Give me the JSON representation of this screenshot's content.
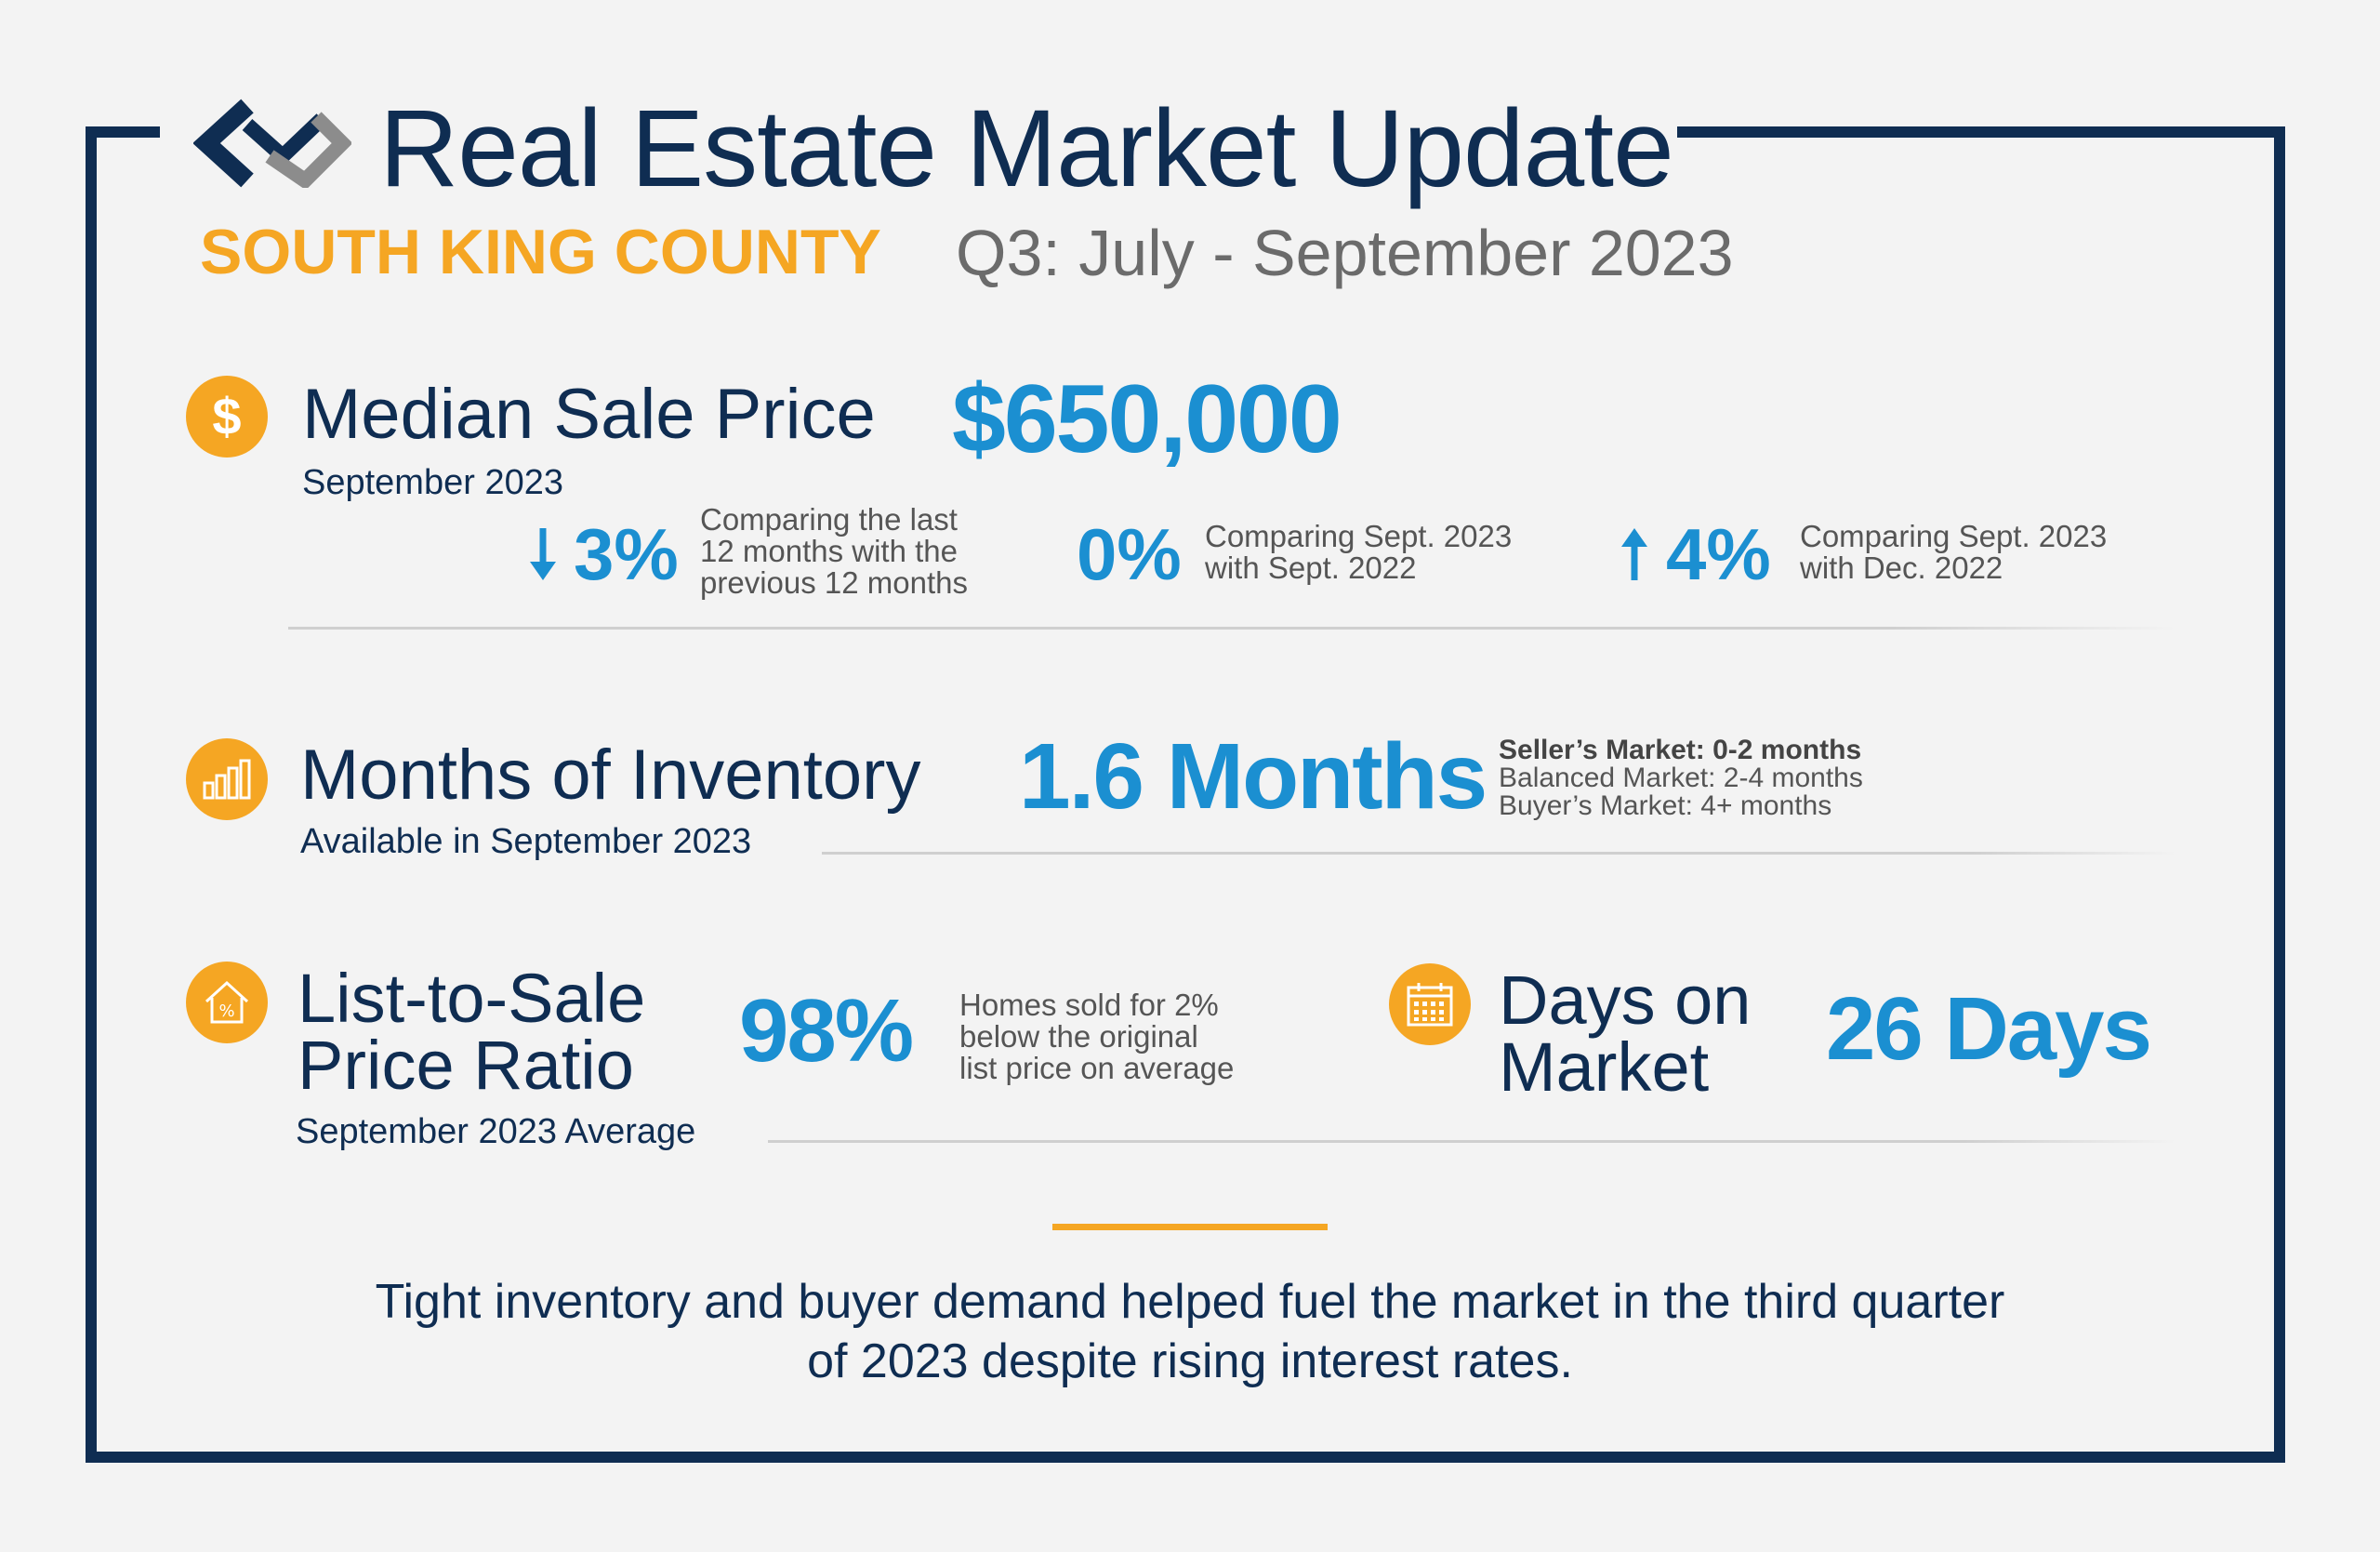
{
  "header": {
    "title": "Real Estate Market Update",
    "region": "SOUTH KING COUNTY",
    "period": "Q3: July - September 2023"
  },
  "colors": {
    "navy": "#0f2d52",
    "accent_orange": "#f5a623",
    "value_blue": "#1b8fd1",
    "text_gray": "#555555"
  },
  "median_sale_price": {
    "icon": "dollar-icon",
    "icon_glyph": "$",
    "title": "Median Sale Price",
    "subtitle": "September 2023",
    "value": "$650,000",
    "stats": [
      {
        "direction": "down",
        "value": "3%",
        "desc_lines": [
          "Comparing the last",
          "12 months with the",
          "previous 12 months"
        ]
      },
      {
        "direction": "none",
        "value": "0%",
        "desc_lines": [
          "Comparing Sept. 2023",
          "with Sept. 2022"
        ]
      },
      {
        "direction": "up",
        "value": "4%",
        "desc_lines": [
          "Comparing Sept. 2023",
          "with Dec. 2022"
        ]
      }
    ]
  },
  "months_of_inventory": {
    "icon": "bar-chart-icon",
    "title": "Months of Inventory",
    "subtitle": "Available in September 2023",
    "value": "1.6 Months",
    "notes": [
      "Seller’s Market: 0-2 months",
      "Balanced Market: 2-4 months",
      "Buyer’s Market: 4+ months"
    ]
  },
  "list_to_sale": {
    "icon": "house-percent-icon",
    "title_lines": [
      "List-to-Sale",
      "Price Ratio"
    ],
    "subtitle": "September 2023 Average",
    "value": "98%",
    "desc_lines": [
      "Homes sold for 2%",
      "below the original",
      "list price on average"
    ]
  },
  "days_on_market": {
    "icon": "calendar-icon",
    "title_lines": [
      "Days on",
      "Market"
    ],
    "value": "26 Days"
  },
  "footer": {
    "lines": [
      "Tight inventory and buyer demand helped fuel the market in the third quarter",
      "of 2023 despite rising interest rates."
    ]
  }
}
